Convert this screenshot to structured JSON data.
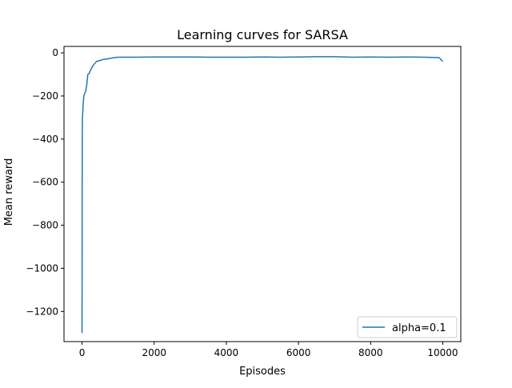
{
  "chart_data": {
    "type": "line",
    "title": "Learning curves for SARSA",
    "xlabel": "Episodes",
    "ylabel": "Mean reward",
    "xlim": [
      -500,
      10500
    ],
    "ylim": [
      -1340,
      30
    ],
    "xticks": [
      0,
      2000,
      4000,
      6000,
      8000,
      10000
    ],
    "xtick_labels": [
      "0",
      "2000",
      "4000",
      "6000",
      "8000",
      "10000"
    ],
    "yticks": [
      0,
      -200,
      -400,
      -600,
      -800,
      -1000,
      -1200
    ],
    "ytick_labels": [
      "0",
      "−200",
      "−400",
      "−600",
      "−800",
      "−1000",
      "−1200"
    ],
    "grid": false,
    "legend_position": "lower right",
    "colors": {
      "series": "#1f77b4",
      "axes": "#000000",
      "legend_border": "#cccccc"
    },
    "series": [
      {
        "name": "alpha=0.1",
        "x": [
          0,
          5,
          10,
          20,
          30,
          50,
          70,
          100,
          130,
          160,
          200,
          250,
          300,
          350,
          400,
          500,
          600,
          700,
          800,
          900,
          1000,
          1200,
          1500,
          2000,
          2500,
          3000,
          3500,
          4000,
          4500,
          5000,
          5500,
          6000,
          6500,
          7000,
          7500,
          8000,
          8500,
          9000,
          9500,
          9900,
          10000
        ],
        "y": [
          -1300,
          -450,
          -300,
          -280,
          -240,
          -200,
          -190,
          -180,
          -150,
          -100,
          -95,
          -75,
          -60,
          -50,
          -40,
          -35,
          -30,
          -28,
          -25,
          -22,
          -20,
          -20,
          -20,
          -19,
          -19,
          -19,
          -20,
          -20,
          -20,
          -19,
          -20,
          -19,
          -18,
          -18,
          -20,
          -19,
          -20,
          -19,
          -20,
          -22,
          -40
        ]
      }
    ]
  }
}
